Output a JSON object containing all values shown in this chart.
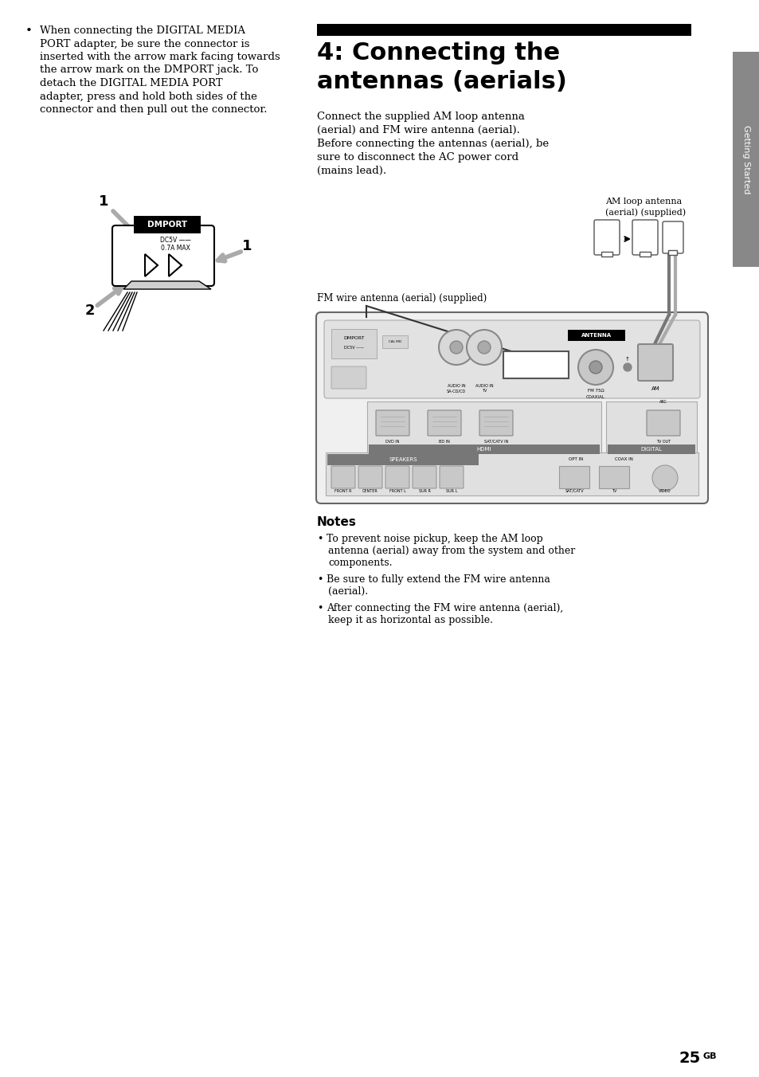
{
  "bg_color": "#ffffff",
  "page_number": "25",
  "page_number_sup": "GB",
  "sidebar_color": "#888888",
  "sidebar_text": "Getting Started",
  "header_bar_color": "#000000",
  "section_title_line1": "4: Connecting the",
  "section_title_line2": "antennas (aerials)",
  "left_bullet_lines": [
    "When connecting the DIGITAL MEDIA",
    "PORT adapter, be sure the connector is",
    "inserted with the arrow mark facing towards",
    "the arrow mark on the DMPORT jack. To",
    "detach the DIGITAL MEDIA PORT",
    "adapter, press and hold both sides of the",
    "connector and then pull out the connector."
  ],
  "right_body_lines": [
    "Connect the supplied AM loop antenna",
    "(aerial) and FM wire antenna (aerial).",
    "Before connecting the antennas (aerial), be",
    "sure to disconnect the AC power cord",
    "(mains lead)."
  ],
  "am_label_line1": "AM loop antenna",
  "am_label_line2": "(aerial) (supplied)",
  "fm_label": "FM wire antenna (aerial) (supplied)",
  "notes_title": "Notes",
  "notes_bullets": [
    [
      "To prevent noise pickup, keep the AM loop",
      "antenna (aerial) away from the system and other",
      "components."
    ],
    [
      "Be sure to fully extend the FM wire antenna",
      "(aerial)."
    ],
    [
      "After connecting the FM wire antenna (aerial),",
      "keep it as horizontal as possible."
    ]
  ]
}
